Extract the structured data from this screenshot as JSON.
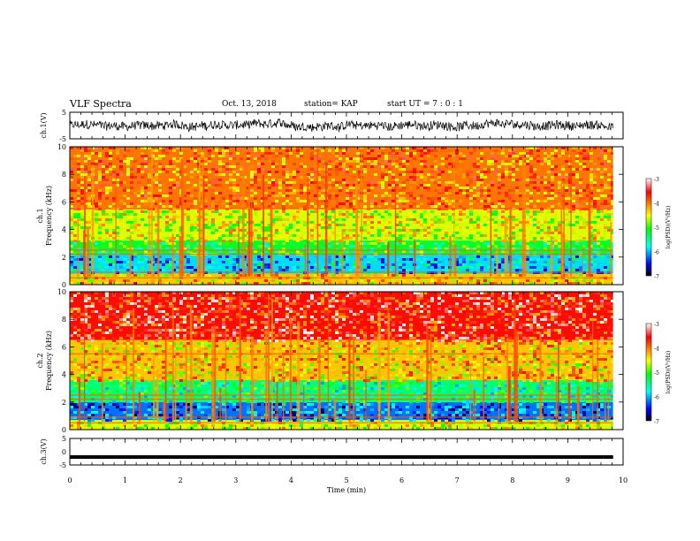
{
  "header": {
    "title": "VLF Spectra",
    "date": "Oct. 13, 2018",
    "station": "station= KAP",
    "start_ut": "start  UT =   7 : 0  : 1"
  },
  "chart_data": [
    {
      "type": "line",
      "panel": "ch1-waveform",
      "ylabel": "ch.1(V)",
      "ylim": [
        -5,
        5
      ],
      "y_ticks": [
        "5",
        "-5"
      ],
      "x_range_min": [
        0,
        9.82
      ],
      "style": "dense black noisy trace"
    },
    {
      "type": "heatmap",
      "panel": "ch1-spectrogram",
      "ylabel": "ch.1\nFrequency (kHz)",
      "ylim": [
        0,
        10
      ],
      "y_ticks": [
        "0",
        "2",
        "4",
        "6",
        "8",
        "10"
      ],
      "x_range_min": [
        0,
        9.82
      ],
      "colorbar": {
        "label": "log(PSD)(V²/Hz)",
        "range": [
          -7,
          -3
        ],
        "ticks": [
          "-3",
          "-4",
          "-5",
          "-6",
          "-7"
        ]
      },
      "bands_kHz": [
        {
          "from": 0,
          "to": 0.8,
          "log_psd": -4.3
        },
        {
          "from": 0.8,
          "to": 2.2,
          "log_psd": -5.9
        },
        {
          "from": 2.2,
          "to": 3.2,
          "log_psd": -5.2
        },
        {
          "from": 3.2,
          "to": 5.5,
          "log_psd": -4.6
        },
        {
          "from": 5.5,
          "to": 10,
          "log_psd": -4.0
        }
      ]
    },
    {
      "type": "heatmap",
      "panel": "ch2-spectrogram",
      "ylabel": "ch.2\nFrequency (kHz)",
      "ylim": [
        0,
        10
      ],
      "y_ticks": [
        "0",
        "2",
        "4",
        "6",
        "8",
        "10"
      ],
      "x_range_min": [
        0,
        9.82
      ],
      "colorbar": {
        "label": "log(PSD)(V²/Hz)",
        "range": [
          -7,
          -3
        ],
        "ticks": [
          "-3",
          "-4",
          "-5",
          "-6",
          "-7"
        ]
      },
      "bands_kHz": [
        {
          "from": 0,
          "to": 0.7,
          "log_psd": -4.6
        },
        {
          "from": 0.7,
          "to": 2.0,
          "log_psd": -6.2
        },
        {
          "from": 2.0,
          "to": 3.6,
          "log_psd": -5.4
        },
        {
          "from": 3.6,
          "to": 6.5,
          "log_psd": -4.3
        },
        {
          "from": 6.5,
          "to": 10,
          "log_psd": -3.6
        }
      ]
    },
    {
      "type": "line",
      "panel": "ch3-waveform",
      "ylabel": "ch.3(V)",
      "ylim": [
        -5,
        5
      ],
      "y_ticks": [
        "5",
        "0",
        "-5"
      ],
      "x_range_min": [
        0,
        9.82
      ],
      "constant_value": -2,
      "style": "thick flat black line"
    }
  ],
  "x_axis": {
    "label": "Time  (min)",
    "range": [
      0,
      10
    ],
    "tick_labels": [
      "0",
      "1",
      "2",
      "3",
      "4",
      "5",
      "6",
      "7",
      "8",
      "9",
      "10"
    ]
  }
}
